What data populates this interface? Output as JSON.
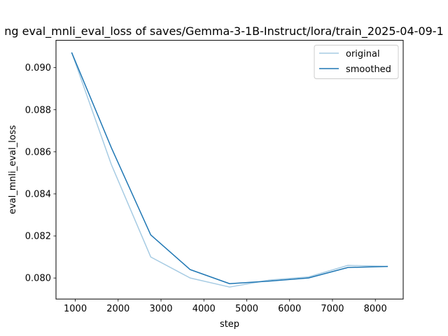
{
  "chart_data": {
    "type": "line",
    "title": "ng eval_mnli_eval_loss of saves/Gemma-3-1B-Instruct/lora/train_2025-04-09-1",
    "xlabel": "step",
    "ylabel": "eval_mnli_eval_loss",
    "xlim": [
      550,
      8650
    ],
    "ylim": [
      0.079,
      0.0913
    ],
    "xticks": [
      1000,
      2000,
      3000,
      4000,
      5000,
      6000,
      7000,
      8000
    ],
    "yticks": [
      0.08,
      0.082,
      0.084,
      0.086,
      0.088,
      0.09
    ],
    "ytick_labels": [
      "0.080",
      "0.082",
      "0.084",
      "0.086",
      "0.088",
      "0.090"
    ],
    "grid": false,
    "legend_position": "upper right",
    "x": [
      920,
      1840,
      2760,
      3680,
      4600,
      5520,
      6440,
      7360,
      8280
    ],
    "series": [
      {
        "name": "original",
        "color": "#a6cbe3",
        "values": [
          0.0907,
          0.0854,
          0.081,
          0.08,
          0.07957,
          0.0799,
          0.08005,
          0.0806,
          0.08055
        ]
      },
      {
        "name": "smoothed",
        "color": "#1f77b4",
        "values": [
          0.0907,
          0.0862,
          0.08205,
          0.0804,
          0.07973,
          0.07985,
          0.08,
          0.0805,
          0.08055
        ]
      }
    ]
  }
}
